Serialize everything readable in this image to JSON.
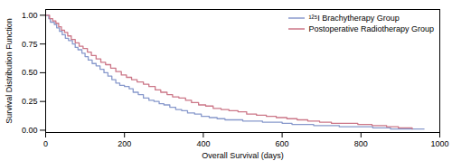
{
  "chart_data": {
    "type": "step",
    "xlabel": "Overall Survival (days)",
    "ylabel": "Survival Distribution Function",
    "xlim": [
      0,
      1000
    ],
    "ylim": [
      -0.02,
      1.05
    ],
    "xticks": [
      0,
      200,
      400,
      600,
      800,
      1000
    ],
    "yticks": [
      {
        "value": 0.0,
        "label": "0.00"
      },
      0.25,
      {
        "value": 0.5,
        "label": "0.50"
      },
      0.75,
      {
        "value": 1.0,
        "label": "1.00"
      }
    ],
    "legend": "upper right",
    "series": [
      {
        "name": "¹²⁵I Brachytherapy Group",
        "color": "#8899cc",
        "x": [
          0,
          8,
          12,
          22,
          28,
          35,
          42,
          50,
          58,
          68,
          75,
          82,
          92,
          100,
          108,
          118,
          128,
          138,
          148,
          158,
          168,
          178,
          188,
          200,
          212,
          222,
          235,
          248,
          262,
          275,
          288,
          300,
          315,
          330,
          345,
          360,
          378,
          395,
          415,
          435,
          455,
          478,
          500,
          525,
          550,
          575,
          600,
          625,
          650,
          680,
          710,
          745,
          785,
          830,
          875,
          920,
          960
        ],
        "values": [
          1.0,
          0.97,
          0.94,
          0.92,
          0.89,
          0.86,
          0.83,
          0.8,
          0.78,
          0.75,
          0.72,
          0.7,
          0.67,
          0.64,
          0.61,
          0.58,
          0.56,
          0.53,
          0.5,
          0.47,
          0.44,
          0.41,
          0.39,
          0.38,
          0.36,
          0.33,
          0.31,
          0.28,
          0.26,
          0.25,
          0.23,
          0.22,
          0.2,
          0.18,
          0.17,
          0.15,
          0.14,
          0.12,
          0.11,
          0.1,
          0.09,
          0.09,
          0.08,
          0.08,
          0.07,
          0.07,
          0.06,
          0.05,
          0.05,
          0.04,
          0.04,
          0.03,
          0.03,
          0.02,
          0.01,
          0.01,
          0.01
        ]
      },
      {
        "name": "Postoperative Radiotherapy Group",
        "color": "#cc7788",
        "x": [
          0,
          10,
          18,
          26,
          33,
          40,
          48,
          56,
          65,
          75,
          85,
          95,
          106,
          116,
          128,
          140,
          152,
          165,
          178,
          192,
          205,
          218,
          232,
          248,
          262,
          278,
          292,
          308,
          322,
          338,
          355,
          370,
          388,
          406,
          425,
          445,
          465,
          488,
          510,
          535,
          560,
          585,
          612,
          638,
          665,
          695,
          725,
          758,
          792,
          828,
          865,
          895,
          930
        ],
        "values": [
          1.0,
          0.97,
          0.95,
          0.93,
          0.9,
          0.87,
          0.85,
          0.82,
          0.79,
          0.76,
          0.73,
          0.71,
          0.68,
          0.65,
          0.62,
          0.59,
          0.57,
          0.54,
          0.51,
          0.48,
          0.46,
          0.44,
          0.42,
          0.4,
          0.38,
          0.35,
          0.33,
          0.31,
          0.29,
          0.28,
          0.26,
          0.24,
          0.22,
          0.21,
          0.19,
          0.18,
          0.17,
          0.16,
          0.14,
          0.13,
          0.12,
          0.11,
          0.1,
          0.09,
          0.08,
          0.07,
          0.06,
          0.06,
          0.05,
          0.04,
          0.03,
          0.02,
          0.01
        ]
      }
    ]
  }
}
